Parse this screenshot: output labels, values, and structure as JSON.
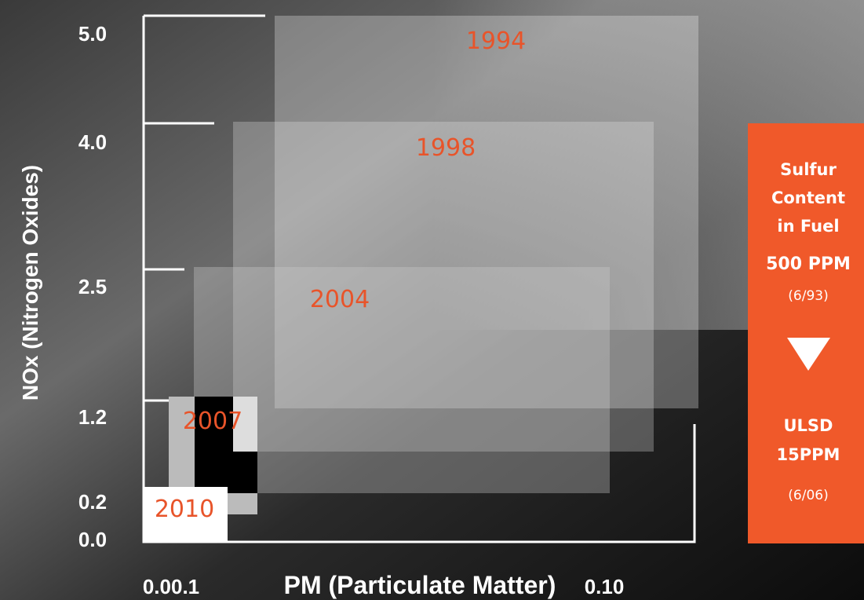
{
  "axes": {
    "y_title": "NOx (Nitrogen Oxides)",
    "y_ticks": [
      "5.0",
      "4.0",
      "2.5",
      "1.2",
      "0.2",
      "0.0"
    ],
    "x_title": "PM (Particulate Matter)",
    "x_ticks": [
      "0.00.1",
      "0.10"
    ]
  },
  "boxes": [
    {
      "label": "1994"
    },
    {
      "label": "1998"
    },
    {
      "label": "2004"
    },
    {
      "label": "2007"
    },
    {
      "label": "2010"
    }
  ],
  "panel": {
    "lines": [
      "Sulfur",
      "Content",
      "in Fuel"
    ],
    "from": "500 PPM",
    "from_date": "(6/93)",
    "to": [
      "ULSD",
      "15PPM"
    ],
    "to_date": "(6/06)"
  }
}
